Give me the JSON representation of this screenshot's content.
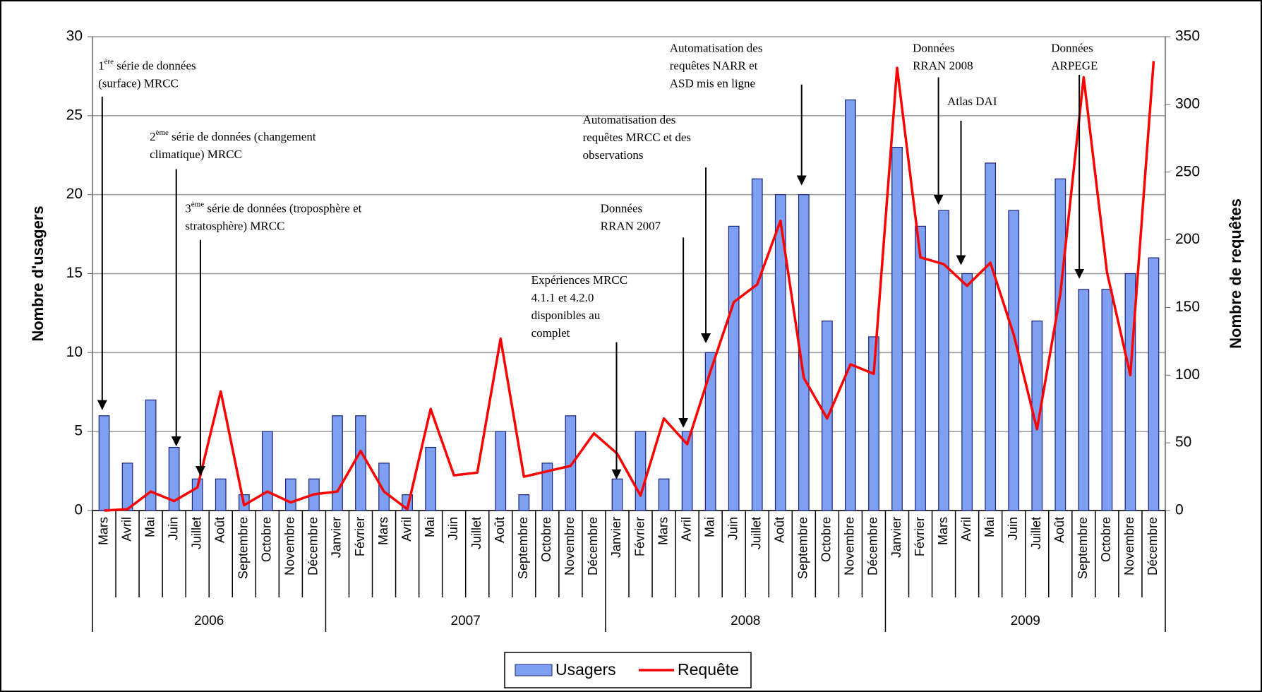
{
  "chart_data": {
    "type": "bar-line",
    "y_label": "Nombre d'usagers",
    "y2_label": "Nombre de requêtes",
    "categories": [
      "Mars",
      "Avril",
      "Mai",
      "Juin",
      "Juillet",
      "Août",
      "Septembre",
      "Octobre",
      "Novembre",
      "Décembre",
      "Janvier",
      "Février",
      "Mars",
      "Avril",
      "Mai",
      "Juin",
      "Juillet",
      "Août",
      "Septembre",
      "Octobre",
      "Novembre",
      "Décembre",
      "Janvier",
      "Février",
      "Mars",
      "Avril",
      "Mai",
      "Juin",
      "Juillet",
      "Août",
      "Septembre",
      "Octobre",
      "Novembre",
      "Décembre",
      "Janvier",
      "Février",
      "Mars",
      "Avril",
      "Mai",
      "Juin",
      "Juillet",
      "Août",
      "Septembre",
      "Octobre",
      "Novembre",
      "Décembre"
    ],
    "groups": [
      "2006",
      "2007",
      "2008",
      "2009"
    ],
    "series": [
      {
        "name": "Usagers",
        "type": "bar",
        "color": "#7f9ff0",
        "values": [
          6,
          3,
          7,
          4,
          2,
          2,
          1,
          5,
          2,
          2,
          6,
          6,
          3,
          1,
          4,
          0,
          0,
          5,
          1,
          3,
          6,
          0,
          2,
          5,
          2,
          5,
          10,
          18,
          21,
          20,
          20,
          12,
          26,
          11,
          23,
          18,
          19,
          15,
          22,
          19,
          12,
          21,
          14,
          14,
          15,
          16
        ]
      },
      {
        "name": "Requête",
        "type": "line",
        "axis": "y2",
        "color": "#ff0000",
        "values": [
          0,
          1,
          14,
          7,
          17,
          88,
          4,
          14,
          6,
          12,
          14,
          44,
          14,
          1,
          75,
          26,
          28,
          127,
          25,
          29,
          33,
          57,
          42,
          11,
          68,
          49,
          103,
          154,
          167,
          214,
          98,
          68,
          108,
          101,
          327,
          187,
          182,
          166,
          183,
          130,
          60,
          160,
          320,
          176,
          100,
          332
        ]
      }
    ],
    "ylim": [
      0,
      30
    ],
    "yticks": [
      0,
      5,
      10,
      15,
      20,
      25,
      30
    ],
    "y2lim": [
      0,
      350
    ],
    "y2ticks": [
      0,
      50,
      100,
      150,
      200,
      250,
      300,
      350
    ],
    "grid": true,
    "legend": "bottom",
    "annotations": [
      {
        "number": "1",
        "sup": "ère",
        "lines": [
          " série de données",
          "(surface) MRCC"
        ]
      },
      {
        "number": "2",
        "sup": "ème",
        "lines": [
          " série de données (changement",
          "climatique) MRCC"
        ]
      },
      {
        "number": "3",
        "sup": "ème",
        "lines": [
          " série de données (troposphère et",
          "stratosphère) MRCC"
        ]
      },
      {
        "lines": [
          "Expériences MRCC",
          "4.1.1 et 4.2.0",
          "disponibles au",
          "complet"
        ]
      },
      {
        "lines": [
          "Données",
          "RRAN 2007"
        ]
      },
      {
        "lines": [
          "Automatisation des",
          "requêtes MRCC et des",
          "observations"
        ]
      },
      {
        "lines": [
          "Automatisation des",
          "requêtes NARR  et",
          "ASD mis en ligne"
        ]
      },
      {
        "lines": [
          "Données",
          "RRAN 2008"
        ]
      },
      {
        "lines": [
          "Atlas DAI"
        ]
      },
      {
        "lines": [
          "Données",
          "ARPEGE"
        ]
      }
    ]
  }
}
